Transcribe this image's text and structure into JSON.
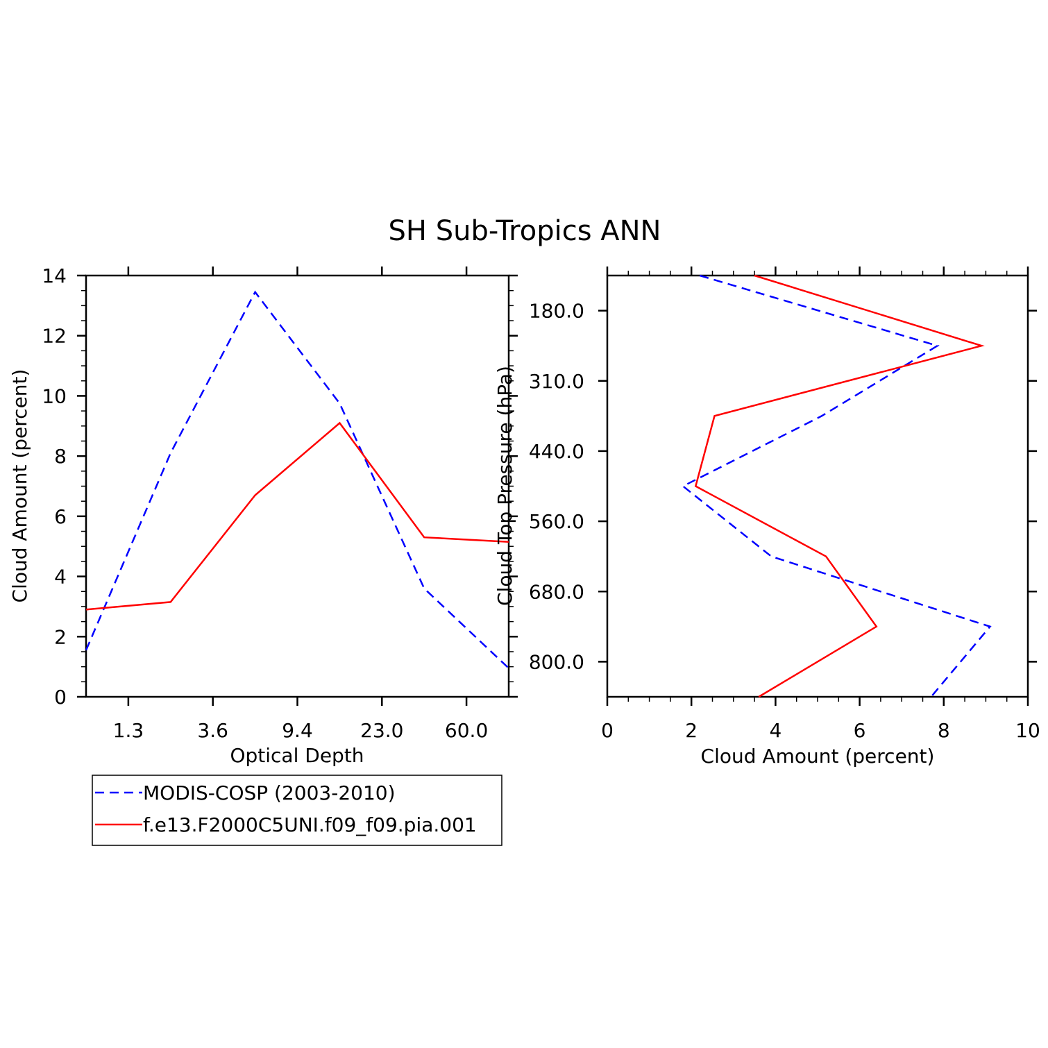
{
  "title": "SH Sub-Tropics ANN",
  "colors": {
    "modis": "#0000ff",
    "model": "#ff0000",
    "axis": "#000000"
  },
  "legend": [
    {
      "label": "MODIS-COSP (2003-2010)",
      "color": "#0000ff",
      "dash": true
    },
    {
      "label": "f.e13.F2000C5UNI.f09_f09.pia.001",
      "color": "#ff0000",
      "dash": false
    }
  ],
  "chart_data": [
    {
      "type": "line",
      "xlabel": "Optical Depth",
      "ylabel": "Cloud Amount (percent)",
      "ylim": [
        0,
        14
      ],
      "yticks": [
        "0",
        "2",
        "4",
        "6",
        "8",
        "10",
        "12",
        "14"
      ],
      "xticks": [
        "1.3",
        "3.6",
        "9.4",
        "23.0",
        "60.0"
      ],
      "x_bins": [
        0,
        1,
        2,
        3,
        4,
        5
      ],
      "series": [
        {
          "name": "MODIS-COSP (2003-2010)",
          "values": [
            1.55,
            8.1,
            13.45,
            9.75,
            3.6,
            0.95
          ]
        },
        {
          "name": "f.e13.F2000C5UNI.f09_f09.pia.001",
          "values": [
            2.9,
            3.15,
            6.7,
            9.1,
            5.3,
            5.15
          ]
        }
      ]
    },
    {
      "type": "line",
      "xlabel": "Cloud Amount (percent)",
      "ylabel": "Cloud Top Pressure (hPa)",
      "xlim": [
        0,
        10
      ],
      "xticks": [
        "0",
        "2",
        "4",
        "6",
        "8",
        "10"
      ],
      "yticks": [
        "180.0",
        "310.0",
        "440.0",
        "560.0",
        "680.0",
        "800.0"
      ],
      "y_levels": [
        0,
        1,
        2,
        3,
        4,
        5,
        6
      ],
      "series": [
        {
          "name": "MODIS-COSP (2003-2010)",
          "values": [
            2.2,
            7.85,
            5.1,
            1.8,
            3.9,
            9.1,
            7.7
          ]
        },
        {
          "name": "f.e13.F2000C5UNI.f09_f09.pia.001",
          "values": [
            3.5,
            8.9,
            2.55,
            2.1,
            5.2,
            6.4,
            3.6
          ]
        }
      ]
    }
  ]
}
